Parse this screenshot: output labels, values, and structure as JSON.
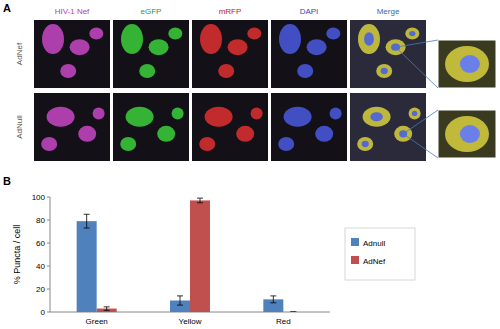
{
  "panel_a": {
    "label": "A",
    "channels": [
      {
        "label": "HIV-1  Nef",
        "color": "#b03cb0"
      },
      {
        "label": "eGFP",
        "color": "#2e9a2e"
      },
      {
        "label": "mRFP",
        "color": "#c42020"
      },
      {
        "label": "DAPI",
        "color": "#3a4aa8"
      },
      {
        "label": "Merge",
        "color": "#3a6aa8"
      }
    ],
    "rows": [
      "AdNef",
      "AdNull"
    ]
  },
  "chart_data": {
    "type": "bar",
    "panel_label": "B",
    "y_label": "% Puncta / cell",
    "categories": [
      "Green",
      "Yellow",
      "Red"
    ],
    "series": [
      {
        "name": "Adnull",
        "color": "#4f81bd",
        "values": [
          79,
          10,
          11
        ],
        "errors": [
          6,
          4,
          3
        ]
      },
      {
        "name": "AdNef",
        "color": "#c0504d",
        "values": [
          3,
          97,
          0
        ],
        "errors": [
          1.5,
          2,
          0
        ]
      }
    ],
    "ylim": [
      0,
      100
    ],
    "yticks": [
      0,
      20,
      40,
      60,
      80,
      100
    ],
    "grid": false,
    "legend": "right"
  }
}
